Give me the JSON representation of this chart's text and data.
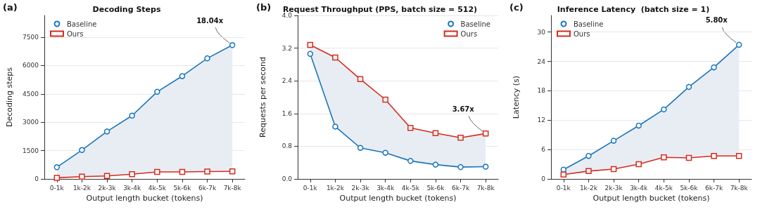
{
  "chart_data": [
    {
      "type": "line",
      "title": "Decoding Steps",
      "xlabel": "Output length bucket (tokens)",
      "ylabel": "Decoding steps",
      "categories": [
        "0-1k",
        "1k-2k",
        "2k-3k",
        "3k-4k",
        "4k-5k",
        "5k-6k",
        "6k-7k",
        "7k-8k"
      ],
      "series": [
        {
          "name": "Baseline",
          "color": "#1a75bc",
          "marker": "circle",
          "values": [
            620,
            1530,
            2510,
            3350,
            4610,
            5440,
            6380,
            7080
          ],
          "lower": [
            60,
            120,
            160,
            250,
            370,
            370,
            390,
            400
          ],
          "upper": [
            620,
            1530,
            2510,
            3350,
            4610,
            5440,
            6380,
            7080
          ]
        },
        {
          "name": "Ours",
          "color": "#d62b1f",
          "marker": "square",
          "values": [
            60,
            120,
            160,
            250,
            370,
            370,
            390,
            400
          ]
        }
      ],
      "ylim": [
        0,
        8650
      ],
      "yticks": [
        0,
        1500,
        3000,
        4500,
        6000,
        7500
      ],
      "grid": "y",
      "legend": "top left",
      "line_style": "solid",
      "annotations": [
        "(a)",
        {
          "text": "18.04x",
          "x": "7k-8k",
          "y": 7080
        }
      ]
    },
    {
      "type": "line",
      "title": "Request Throughput (PPS, batch size = 512)",
      "xlabel": "Output length bucket (tokens)",
      "ylabel": "Requests per second",
      "categories": [
        "0-1k",
        "1k-2k",
        "2k-3k",
        "3k-4k",
        "4k-5k",
        "5k-6k",
        "6k-7k",
        "7k-8k"
      ],
      "series": [
        {
          "name": "Baseline",
          "color": "#1a75bc",
          "marker": "circle",
          "values": [
            3.06,
            1.28,
            0.76,
            0.64,
            0.44,
            0.35,
            0.29,
            0.3
          ],
          "lower": [
            3.06,
            1.28,
            0.76,
            0.64,
            0.44,
            0.35,
            0.29,
            0.3
          ],
          "upper": [
            3.28,
            2.97,
            2.44,
            1.94,
            1.25,
            1.12,
            1.01,
            1.11
          ]
        },
        {
          "name": "Ours",
          "color": "#d62b1f",
          "marker": "square",
          "values": [
            3.28,
            2.97,
            2.44,
            1.94,
            1.25,
            1.12,
            1.01,
            1.11
          ]
        }
      ],
      "ylim": [
        0,
        4.0
      ],
      "yticks": [
        {
          "value": 0,
          "label": "0.0"
        },
        0.8,
        1.6,
        2.4,
        3.2,
        {
          "value": 4,
          "label": "4.0"
        }
      ],
      "grid": "y",
      "legend": "top right",
      "line_style": "solid",
      "annotations": [
        "(b)",
        {
          "text": "3.67x",
          "x": "7k-8k",
          "y": 1.11
        }
      ]
    },
    {
      "type": "line",
      "title": "Inference Latency  (batch size = 1)",
      "xlabel": "Output length bucket (tokens)",
      "ylabel": "Latency (s)",
      "categories": [
        "0-1k",
        "1k-2k",
        "2k-3k",
        "3k-4k",
        "4k-5k",
        "5k-6k",
        "6k-7k",
        "7k-8k"
      ],
      "series": [
        {
          "name": "Baseline",
          "color": "#1a75bc",
          "marker": "circle",
          "values": [
            1.9,
            4.7,
            7.8,
            10.9,
            14.2,
            18.8,
            22.8,
            27.4
          ],
          "lower": [
            0.9,
            1.6,
            2.0,
            3.0,
            4.4,
            4.3,
            4.7,
            4.7
          ],
          "upper": [
            1.9,
            4.7,
            7.8,
            10.9,
            14.2,
            18.8,
            22.8,
            27.4
          ]
        },
        {
          "name": "Ours",
          "color": "#d62b1f",
          "marker": "square",
          "values": [
            0.9,
            1.6,
            2.0,
            3.0,
            4.4,
            4.3,
            4.7,
            4.7
          ]
        }
      ],
      "ylim": [
        0,
        33.4
      ],
      "yticks": [
        0,
        6,
        12,
        18,
        24,
        30
      ],
      "grid": "y",
      "legend": "top left",
      "line_style": "solid",
      "annotations": [
        "(c)",
        {
          "text": "5.80x",
          "x": "7k-8k",
          "y": 27.4
        }
      ]
    }
  ]
}
